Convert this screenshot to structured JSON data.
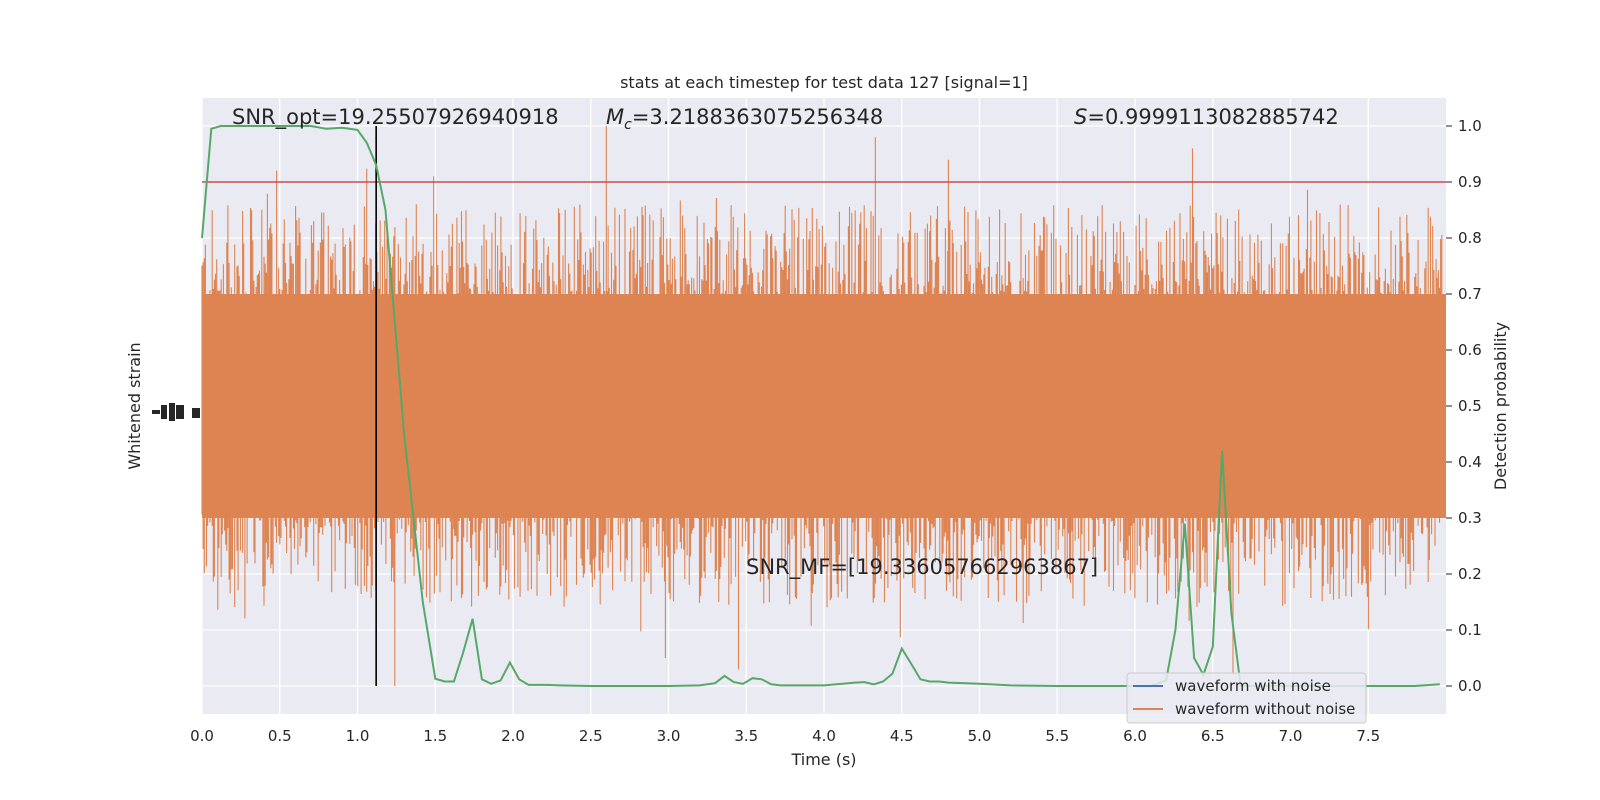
{
  "chart_data": {
    "type": "line",
    "title": "stats at each timestep for test data 127 [signal=1]",
    "xlabel": "Time (s)",
    "ylabel_left": "Whitened strain",
    "ylabel_right": "Detection probability",
    "xlim": [
      0.0,
      8.0
    ],
    "ylim_right": [
      -0.05,
      1.05
    ],
    "x_ticks": [
      "0.0",
      "0.5",
      "1.0",
      "1.5",
      "2.0",
      "2.5",
      "3.0",
      "3.5",
      "4.0",
      "4.5",
      "5.0",
      "5.5",
      "6.0",
      "6.5",
      "7.0",
      "7.5"
    ],
    "y_ticks_right": [
      "0.0",
      "0.1",
      "0.2",
      "0.3",
      "0.4",
      "0.5",
      "0.6",
      "0.7",
      "0.8",
      "0.9",
      "1.0"
    ],
    "threshold": 0.9,
    "peak_time": 1.12,
    "annotations": {
      "snr_opt": "SNR_opt=19.25507926940918",
      "mc_prefix": "M",
      "mc_sub": "c",
      "mc_value": "=3.2188363075256348",
      "s_prefix": "S",
      "s_value": "=0.9999113082885742",
      "snr_mf": "SNR_MF=[19.336057662963867]"
    },
    "grid": true,
    "legend_position": "lower-right",
    "series": [
      {
        "name": "waveform with noise",
        "color": "#4c72b0"
      },
      {
        "name": "waveform without noise",
        "color": "#dd8452"
      },
      {
        "color": "#55a868",
        "x": [
          0.0,
          0.06,
          0.12,
          0.2,
          0.3,
          0.4,
          0.5,
          0.6,
          0.7,
          0.8,
          0.9,
          1.0,
          1.06,
          1.12,
          1.18,
          1.24,
          1.3,
          1.36,
          1.42,
          1.5,
          1.56,
          1.62,
          1.68,
          1.74,
          1.8,
          1.86,
          1.92,
          1.98,
          2.04,
          2.1,
          2.16,
          2.22,
          2.3,
          2.5,
          2.8,
          3.0,
          3.2,
          3.3,
          3.36,
          3.42,
          3.48,
          3.54,
          3.6,
          3.66,
          3.72,
          3.8,
          4.0,
          4.2,
          4.26,
          4.32,
          4.38,
          4.44,
          4.5,
          4.56,
          4.62,
          4.68,
          4.74,
          4.8,
          5.0,
          5.2,
          5.5,
          6.0,
          6.1,
          6.2,
          6.26,
          6.32,
          6.38,
          6.44,
          6.5,
          6.56,
          6.62,
          6.68,
          6.8,
          7.0,
          7.5,
          7.8,
          7.96
        ],
        "y": [
          0.8,
          0.995,
          1.0,
          1.0,
          1.0,
          1.0,
          1.0,
          1.0,
          1.0,
          0.995,
          0.997,
          0.993,
          0.97,
          0.93,
          0.85,
          0.65,
          0.45,
          0.3,
          0.15,
          0.013,
          0.008,
          0.008,
          0.06,
          0.12,
          0.012,
          0.004,
          0.01,
          0.042,
          0.012,
          0.002,
          0.002,
          0.002,
          0.001,
          0.0,
          0.0,
          0.0,
          0.001,
          0.005,
          0.018,
          0.007,
          0.004,
          0.014,
          0.012,
          0.003,
          0.001,
          0.001,
          0.001,
          0.006,
          0.007,
          0.003,
          0.008,
          0.022,
          0.067,
          0.04,
          0.012,
          0.008,
          0.008,
          0.006,
          0.004,
          0.001,
          0.0,
          0.0,
          0.0,
          0.01,
          0.1,
          0.29,
          0.05,
          0.02,
          0.07,
          0.42,
          0.13,
          0.0,
          0.0,
          0.0,
          0.0,
          0.0,
          0.003
        ]
      }
    ]
  }
}
